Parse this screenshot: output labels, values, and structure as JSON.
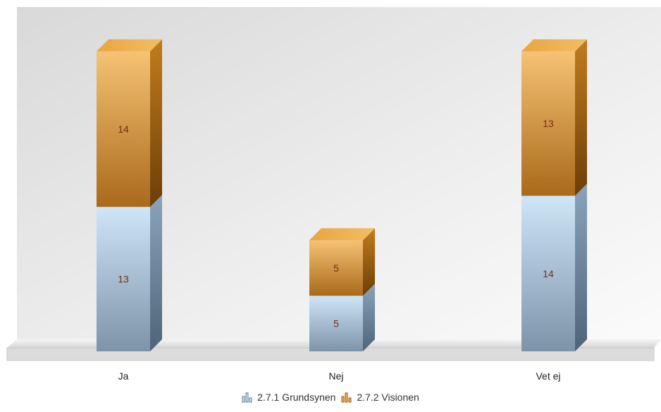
{
  "chart_data": {
    "type": "bar",
    "stacked": true,
    "three_d": true,
    "categories": [
      "Ja",
      "Nej",
      "Vet ej"
    ],
    "series": [
      {
        "name": "2.7.1 Grundsynen",
        "values": [
          13,
          5,
          14
        ],
        "color": "#9db8cf",
        "icon": "bar-chart-icon"
      },
      {
        "name": "2.7.2 Visionen",
        "values": [
          14,
          5,
          13
        ],
        "color": "#d99a3a",
        "icon": "bar-chart-icon"
      }
    ],
    "ylim": [
      0,
      27
    ],
    "grid": false,
    "legend_position": "bottom-center",
    "background_color": "#e9e9e9",
    "label_color": "#7a2e10"
  }
}
